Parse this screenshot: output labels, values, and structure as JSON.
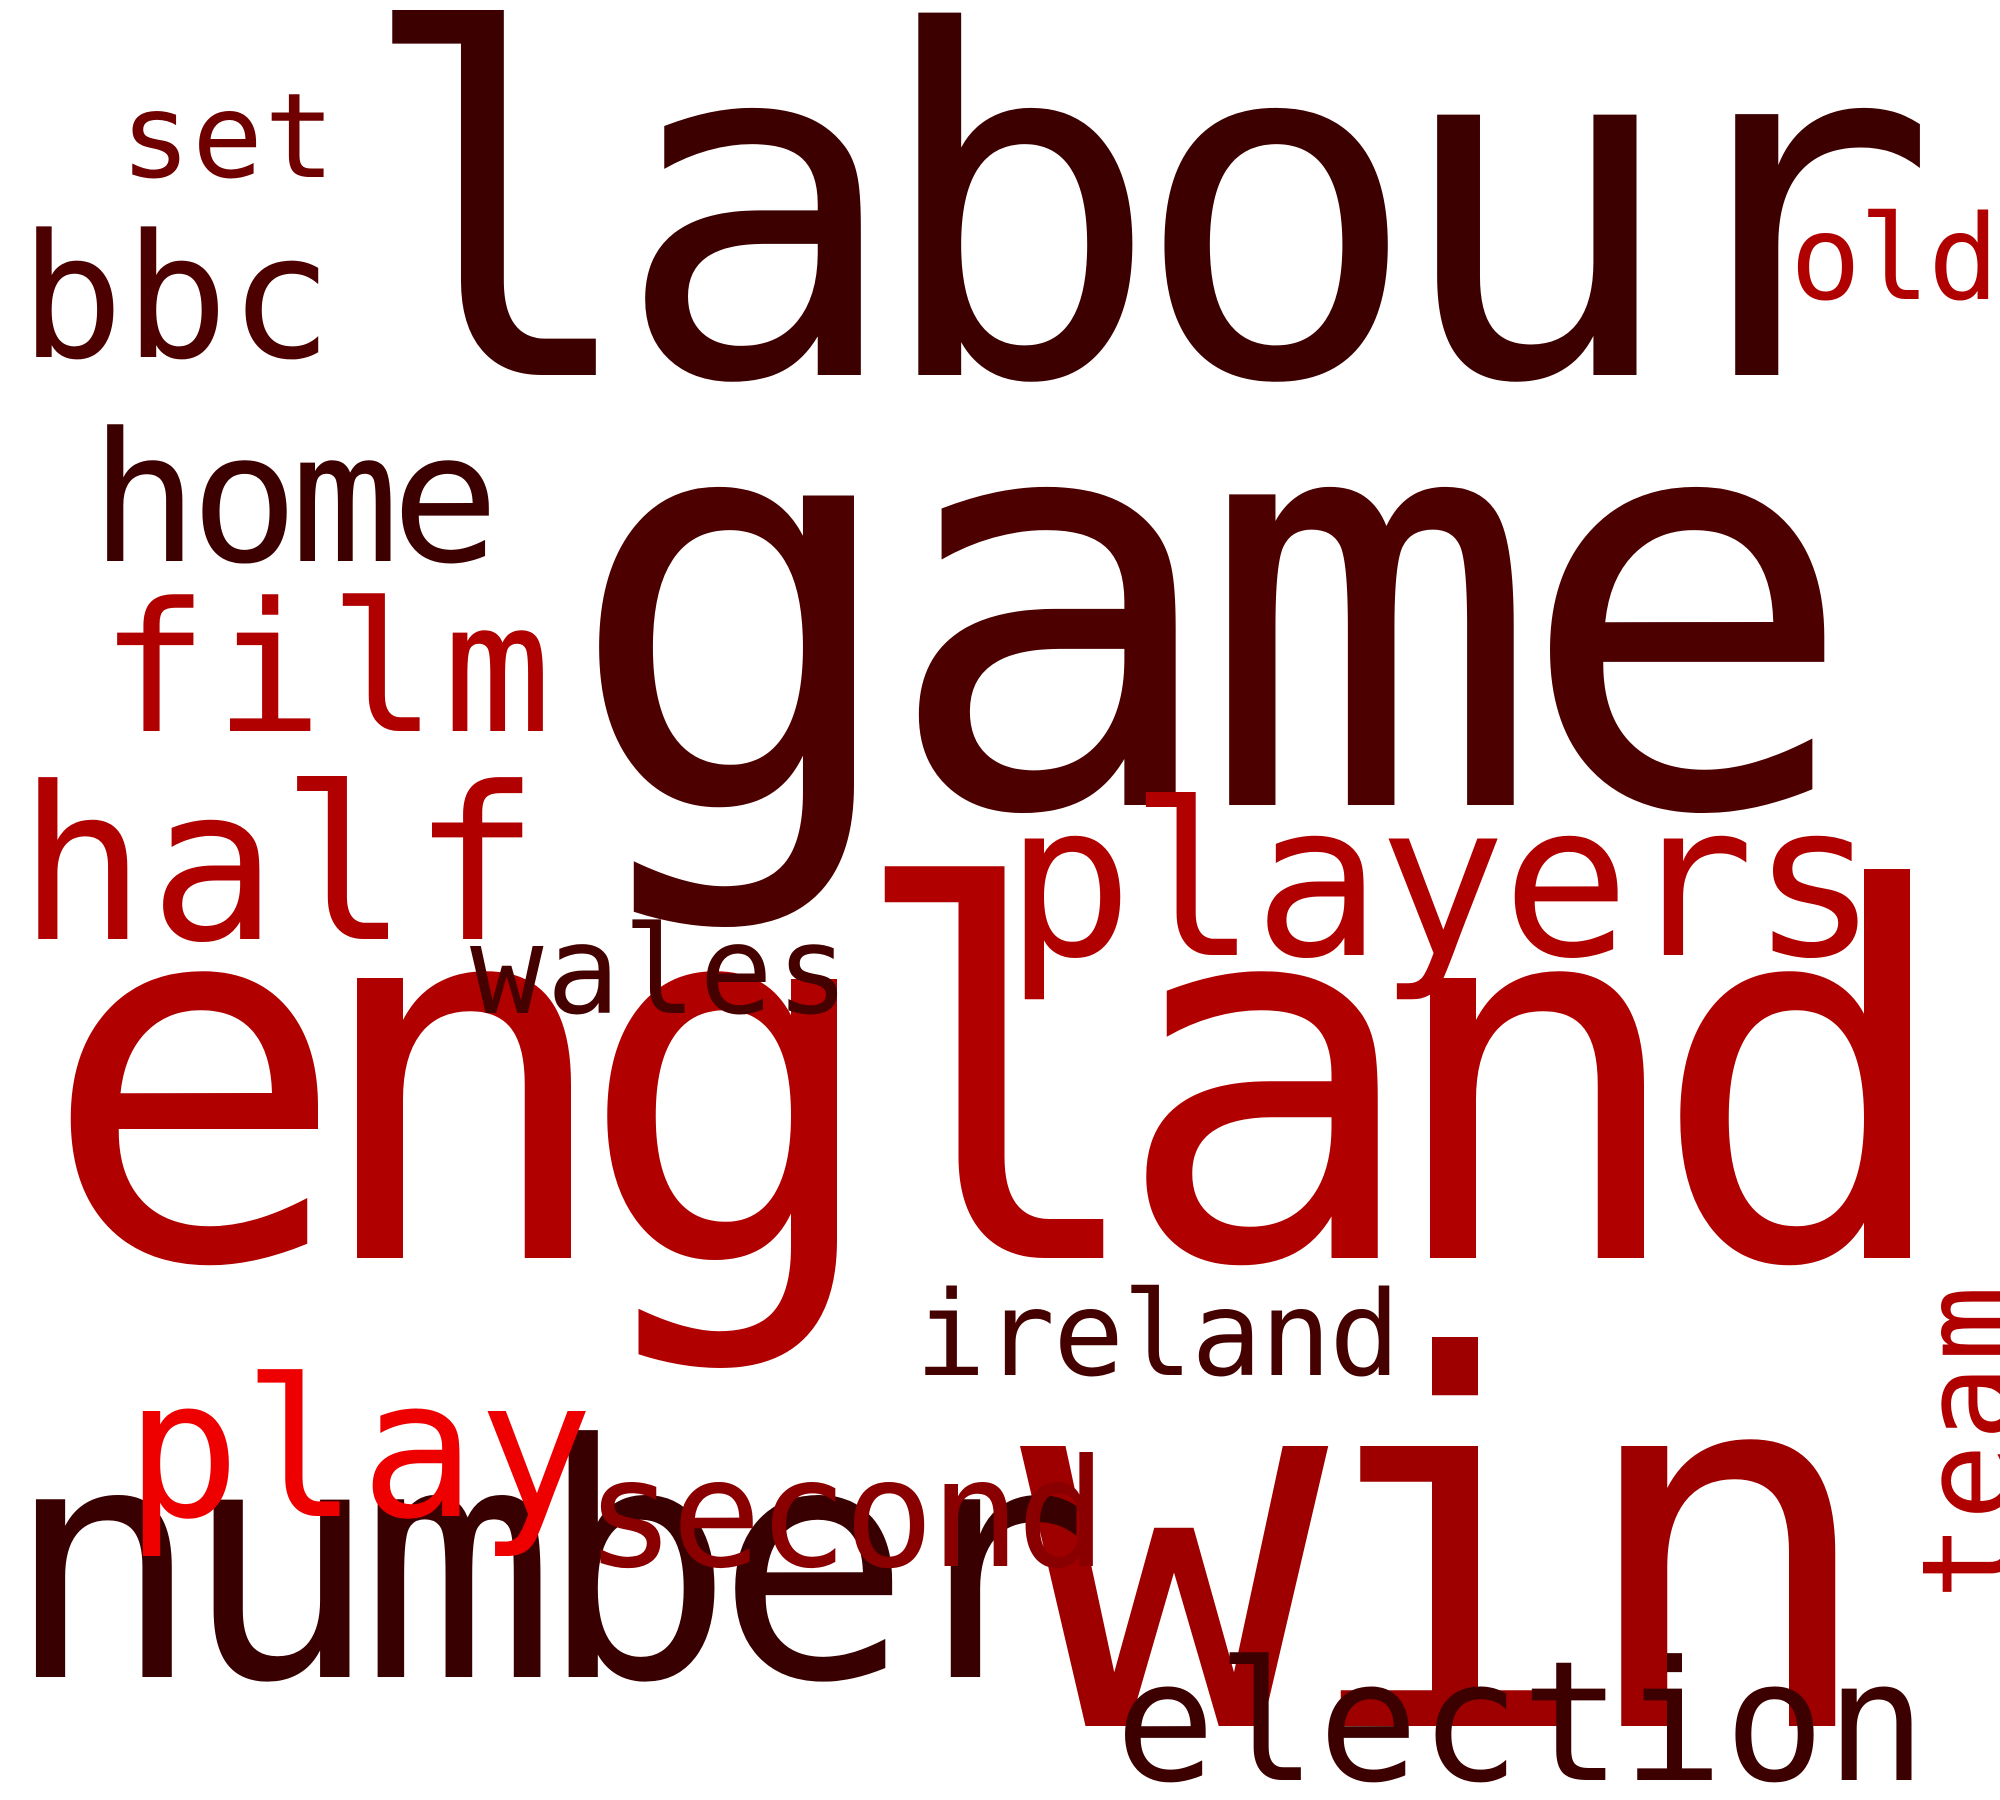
{
  "words": [
    {
      "id": "labour",
      "text": "labour",
      "color": "#3d0000"
    },
    {
      "id": "game",
      "text": "game",
      "color": "#4d0000"
    },
    {
      "id": "england",
      "text": "england",
      "color": "#b00000"
    },
    {
      "id": "win",
      "text": "win",
      "color": "#9e0000"
    },
    {
      "id": "number",
      "text": "number",
      "color": "#380000"
    },
    {
      "id": "players",
      "text": "players",
      "color": "#b00000"
    },
    {
      "id": "half",
      "text": "half",
      "color": "#b00000"
    },
    {
      "id": "home",
      "text": "home",
      "color": "#3d0000"
    },
    {
      "id": "film",
      "text": "film",
      "color": "#b00000"
    },
    {
      "id": "bbc",
      "text": "bbc",
      "color": "#4d0000"
    },
    {
      "id": "set",
      "text": "set",
      "color": "#700000"
    },
    {
      "id": "old",
      "text": "old",
      "color": "#b00000"
    },
    {
      "id": "wales",
      "text": "wales",
      "color": "#450000"
    },
    {
      "id": "ireland",
      "text": "ireland",
      "color": "#450000"
    },
    {
      "id": "play",
      "text": "play",
      "color": "#ee0000"
    },
    {
      "id": "second",
      "text": "second",
      "color": "#8a0000"
    },
    {
      "id": "election",
      "text": "election",
      "color": "#3d0000"
    },
    {
      "id": "team",
      "text": "team",
      "color": "#b00000"
    }
  ]
}
